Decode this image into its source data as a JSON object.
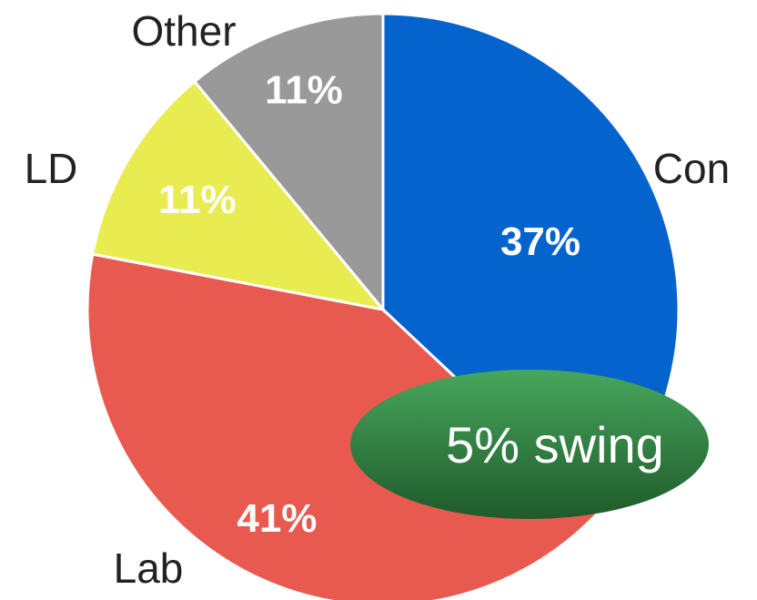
{
  "chart_data": {
    "type": "pie",
    "title": "",
    "slices": [
      {
        "label": "Con",
        "value": 37,
        "value_label": "37%",
        "color": "#0563CE"
      },
      {
        "label": "Lab",
        "value": 41,
        "value_label": "41%",
        "color": "#E85A4F"
      },
      {
        "label": "LD",
        "value": 11,
        "value_label": "11%",
        "color": "#E8EC50"
      },
      {
        "label": "Other",
        "value": 11,
        "value_label": "11%",
        "color": "#999999"
      }
    ],
    "start_angle": "12 o'clock",
    "direction": "clockwise",
    "annotation": {
      "text": "5% swing",
      "color": "#2E7D3E"
    }
  }
}
